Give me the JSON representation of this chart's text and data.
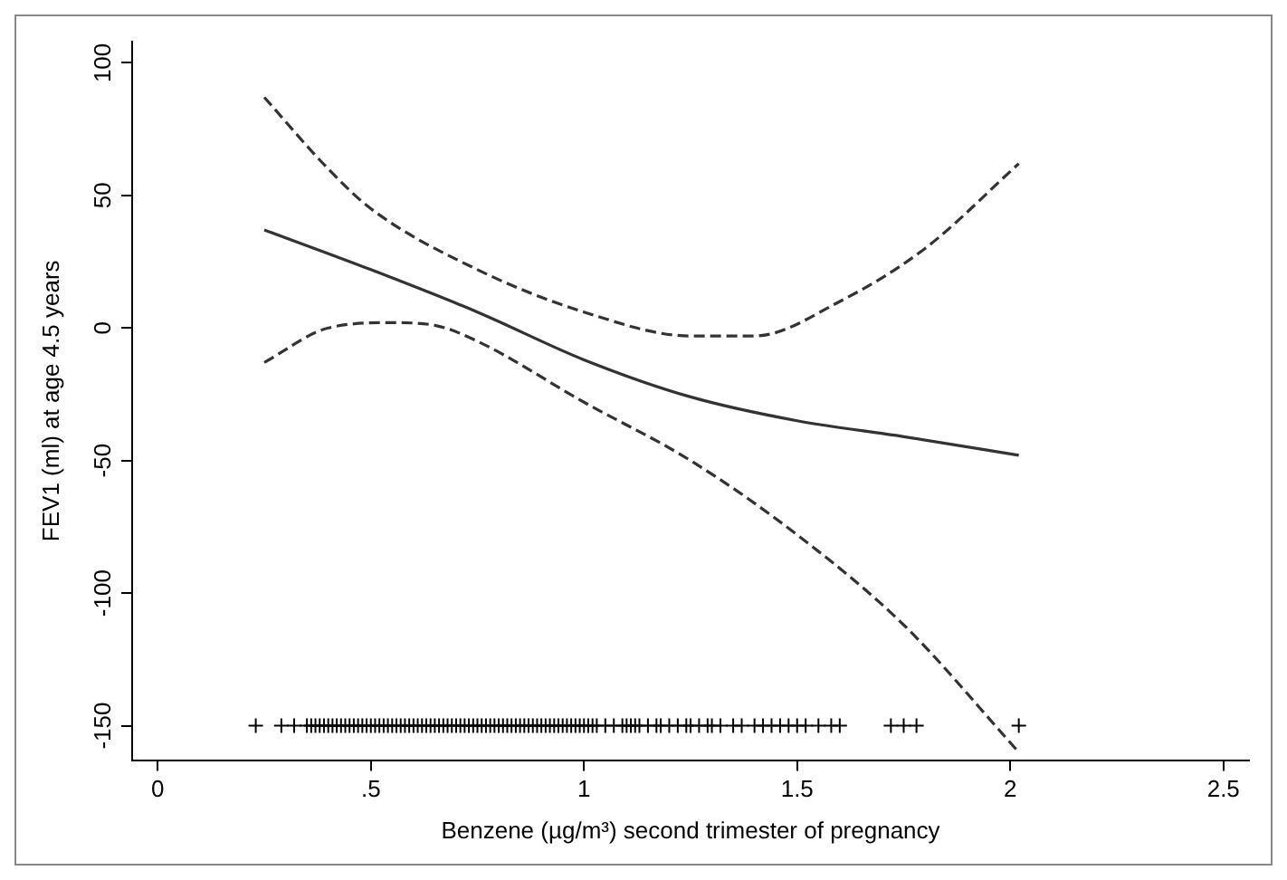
{
  "chart_data": {
    "type": "line",
    "xlabel": "Benzene (µg/m³) second trimester of pregnancy",
    "ylabel": "FEV1 (ml) at age 4.5 years",
    "xlim": [
      -0.06,
      2.56
    ],
    "ylim": [
      -163,
      108
    ],
    "xticks": [
      0,
      {
        "value": 0.5,
        "label": ".5"
      },
      1,
      1.5,
      2,
      2.5
    ],
    "yticks": [
      -150,
      -100,
      -50,
      0,
      50,
      100
    ],
    "grid": false,
    "legend": false,
    "series": [
      {
        "color": "#333333",
        "line_style": "solid",
        "marker": "none",
        "x": [
          0.25,
          0.5,
          0.75,
          1.0,
          1.25,
          1.5,
          1.75,
          2.02
        ],
        "values": [
          37,
          22,
          6,
          -12,
          -26,
          -35,
          -41,
          -48
        ]
      },
      {
        "color": "#333333",
        "line_style": "dashed",
        "marker": "none",
        "x": [
          0.25,
          0.4,
          0.5,
          0.75,
          1.0,
          1.25,
          1.4,
          1.6,
          1.8,
          2.02
        ],
        "values": [
          87,
          60,
          45,
          22,
          6,
          -3,
          -3,
          10,
          30,
          62
        ]
      },
      {
        "color": "#333333",
        "line_style": "dashed",
        "marker": "none",
        "x": [
          0.25,
          0.4,
          0.55,
          0.65,
          0.75,
          1.0,
          1.25,
          1.5,
          1.75,
          2.02
        ],
        "values": [
          -13,
          0,
          2,
          1,
          -5,
          -28,
          -50,
          -78,
          -112,
          -160
        ]
      },
      {
        "type": "scatter",
        "color": "#000000",
        "marker": "cross",
        "x": [
          0.23,
          0.29,
          0.32,
          0.35,
          0.36,
          0.37,
          0.38,
          0.39,
          0.4,
          0.41,
          0.42,
          0.43,
          0.44,
          0.45,
          0.46,
          0.47,
          0.48,
          0.49,
          0.5,
          0.51,
          0.52,
          0.53,
          0.54,
          0.55,
          0.56,
          0.57,
          0.58,
          0.59,
          0.6,
          0.61,
          0.62,
          0.63,
          0.64,
          0.65,
          0.66,
          0.67,
          0.68,
          0.69,
          0.7,
          0.71,
          0.72,
          0.73,
          0.74,
          0.75,
          0.76,
          0.77,
          0.78,
          0.79,
          0.8,
          0.81,
          0.82,
          0.83,
          0.84,
          0.85,
          0.86,
          0.87,
          0.88,
          0.89,
          0.9,
          0.91,
          0.92,
          0.93,
          0.94,
          0.95,
          0.96,
          0.97,
          0.98,
          0.99,
          1.0,
          1.01,
          1.02,
          1.03,
          1.05,
          1.07,
          1.09,
          1.1,
          1.11,
          1.12,
          1.13,
          1.15,
          1.17,
          1.18,
          1.2,
          1.22,
          1.24,
          1.25,
          1.27,
          1.29,
          1.3,
          1.32,
          1.35,
          1.37,
          1.4,
          1.42,
          1.44,
          1.46,
          1.48,
          1.5,
          1.52,
          1.55,
          1.58,
          1.6,
          1.72,
          1.75,
          1.78,
          2.02
        ],
        "values": [
          -150,
          -150,
          -150,
          -150,
          -150,
          -150,
          -150,
          -150,
          -150,
          -150,
          -150,
          -150,
          -150,
          -150,
          -150,
          -150,
          -150,
          -150,
          -150,
          -150,
          -150,
          -150,
          -150,
          -150,
          -150,
          -150,
          -150,
          -150,
          -150,
          -150,
          -150,
          -150,
          -150,
          -150,
          -150,
          -150,
          -150,
          -150,
          -150,
          -150,
          -150,
          -150,
          -150,
          -150,
          -150,
          -150,
          -150,
          -150,
          -150,
          -150,
          -150,
          -150,
          -150,
          -150,
          -150,
          -150,
          -150,
          -150,
          -150,
          -150,
          -150,
          -150,
          -150,
          -150,
          -150,
          -150,
          -150,
          -150,
          -150,
          -150,
          -150,
          -150,
          -150,
          -150,
          -150,
          -150,
          -150,
          -150,
          -150,
          -150,
          -150,
          -150,
          -150,
          -150,
          -150,
          -150,
          -150,
          -150,
          -150,
          -150,
          -150,
          -150,
          -150,
          -150,
          -150,
          -150,
          -150,
          -150,
          -150,
          -150,
          -150,
          -150,
          -150,
          -150,
          -150,
          -150
        ]
      }
    ]
  }
}
